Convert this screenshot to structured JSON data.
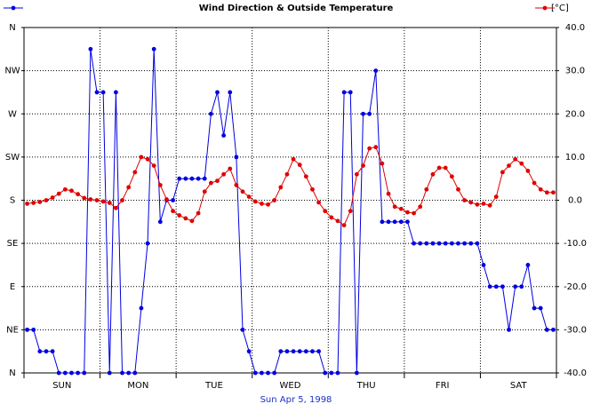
{
  "chart_data": {
    "type": "line",
    "title": "Wind Direction & Outside Temperature",
    "xlabel": "Sun Apr 5, 1998",
    "y2label": "[°C]",
    "xlim": [
      0,
      168
    ],
    "xticks": [
      0,
      24,
      48,
      72,
      96,
      120,
      144,
      168
    ],
    "day_labels": [
      "SUN",
      "MON",
      "TUE",
      "WED",
      "THU",
      "FRI",
      "SAT"
    ],
    "ylim": [
      0,
      360
    ],
    "yticks": [
      {
        "value": 0,
        "label": "N"
      },
      {
        "value": 45,
        "label": "NE"
      },
      {
        "value": 90,
        "label": "E"
      },
      {
        "value": 135,
        "label": "SE"
      },
      {
        "value": 180,
        "label": "S"
      },
      {
        "value": 225,
        "label": "SW"
      },
      {
        "value": 270,
        "label": "W"
      },
      {
        "value": 315,
        "label": "NW"
      },
      {
        "value": 360,
        "label": "N"
      }
    ],
    "y2lim": [
      -40,
      40
    ],
    "y2ticks": [
      {
        "value": -40,
        "label": "-40.0"
      },
      {
        "value": -30,
        "label": "-30.0"
      },
      {
        "value": -20,
        "label": "-20.0"
      },
      {
        "value": -10,
        "label": "-10.0"
      },
      {
        "value": 0,
        "label": "0.0"
      },
      {
        "value": 10,
        "label": "10.0"
      },
      {
        "value": 20,
        "label": "20.0"
      },
      {
        "value": 30,
        "label": "30.0"
      },
      {
        "value": 40,
        "label": "40.0"
      }
    ],
    "grid": true,
    "x": [
      1,
      3,
      5,
      7,
      9,
      11,
      13,
      15,
      17,
      19,
      21,
      23,
      25,
      27,
      29,
      31,
      33,
      35,
      37,
      39,
      41,
      43,
      45,
      47,
      49,
      51,
      53,
      55,
      57,
      59,
      61,
      63,
      65,
      67,
      69,
      71,
      73,
      75,
      77,
      79,
      81,
      83,
      85,
      87,
      89,
      91,
      93,
      95,
      97,
      99,
      101,
      103,
      105,
      107,
      109,
      111,
      113,
      115,
      117,
      119,
      121,
      123,
      125,
      127,
      129,
      131,
      133,
      135,
      137,
      139,
      141,
      143,
      145,
      147,
      149,
      151,
      153,
      155,
      157,
      159,
      161,
      163,
      165,
      167
    ],
    "series": [
      {
        "color": "#0000e0",
        "axis": "y",
        "legend": "left",
        "values": [
          45,
          45,
          22.5,
          22.5,
          22.5,
          0,
          0,
          0,
          0,
          0,
          337.5,
          292.5,
          292.5,
          0,
          292.5,
          0,
          0,
          0,
          67.5,
          135,
          337.5,
          157.5,
          180,
          180,
          202.5,
          202.5,
          202.5,
          202.5,
          202.5,
          270,
          292.5,
          247.5,
          292.5,
          225,
          45,
          22.5,
          0,
          0,
          0,
          0,
          22.5,
          22.5,
          22.5,
          22.5,
          22.5,
          22.5,
          22.5,
          0,
          0,
          0,
          292.5,
          292.5,
          0,
          270,
          270,
          315,
          157.5,
          157.5,
          157.5,
          157.5,
          157.5,
          135,
          135,
          135,
          135,
          135,
          135,
          135,
          135,
          135,
          135,
          135,
          112.5,
          90,
          90,
          90,
          45,
          90,
          90,
          112.5,
          67.5,
          67.5,
          45,
          45
        ]
      },
      {
        "color": "#e00000",
        "axis": "y2",
        "legend": "right",
        "values": [
          -0.8,
          -0.6,
          -0.4,
          0,
          0.6,
          1.5,
          2.5,
          2.2,
          1.4,
          0.5,
          0.2,
          0,
          -0.3,
          -0.6,
          -1.8,
          0,
          3,
          6.5,
          10,
          9.5,
          8,
          3.5,
          0.2,
          -2.5,
          -3.5,
          -4.2,
          -4.8,
          -3,
          2,
          4,
          4.5,
          6,
          7.3,
          3.5,
          2,
          0.8,
          -0.3,
          -0.8,
          -1,
          0,
          3,
          6,
          9.5,
          8.2,
          5.5,
          2.5,
          -0.5,
          -2.5,
          -4,
          -4.8,
          -5.8,
          -2.5,
          6,
          8,
          12,
          12.3,
          8.5,
          1.5,
          -1.5,
          -2,
          -2.8,
          -3,
          -1.5,
          2.5,
          6,
          7.5,
          7.5,
          5.5,
          2.5,
          0,
          -0.5,
          -1,
          -0.8,
          -1.2,
          0.8,
          6.5,
          8,
          9.5,
          8.5,
          6.8,
          4,
          2.5,
          1.8,
          1.8
        ]
      }
    ]
  }
}
